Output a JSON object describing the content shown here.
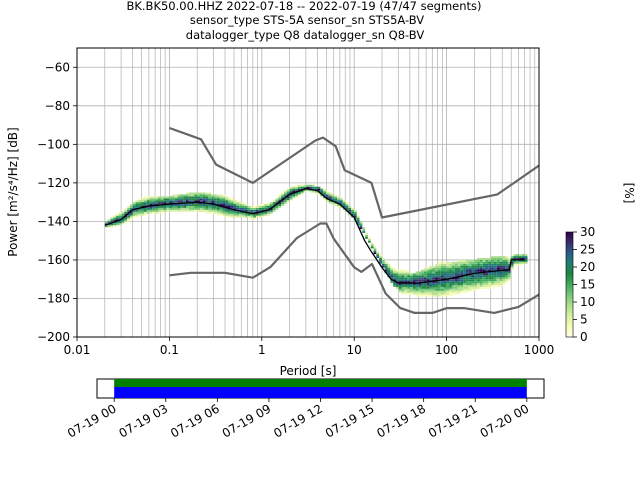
{
  "title_lines": [
    "BK.BK50.00.HHZ   2022-07-18 -- 2022-07-19  (47/47 segments)",
    "sensor_type STS-5A sensor_sn STS5A-BV",
    "datalogger_type Q8 datalogger_sn Q8-BV"
  ],
  "chart_data": [
    {
      "type": "heatmap",
      "xlabel": "Period [s]",
      "ylabel": "Power [m²/s⁴/Hz] [dB]",
      "xscale": "log",
      "xlim": [
        0.01,
        1000
      ],
      "ylim": [
        -200,
        -50
      ],
      "xticks": [
        {
          "v": 0.01,
          "label": "0.01"
        },
        {
          "v": 0.1,
          "label": "0.1"
        },
        {
          "v": 1,
          "label": "1"
        },
        {
          "v": 10,
          "label": "10"
        },
        {
          "v": 100,
          "label": "100"
        },
        {
          "v": 1000,
          "label": "1000"
        }
      ],
      "yticks": [
        {
          "v": -60,
          "label": "−60"
        },
        {
          "v": -80,
          "label": "−80"
        },
        {
          "v": -100,
          "label": "−100"
        },
        {
          "v": -120,
          "label": "−120"
        },
        {
          "v": -140,
          "label": "−140"
        },
        {
          "v": -160,
          "label": "−160"
        },
        {
          "v": -180,
          "label": "−180"
        },
        {
          "v": -200,
          "label": "−200"
        }
      ],
      "grid": true,
      "colorbar": {
        "label": "[%]",
        "range": [
          0,
          30
        ],
        "ticks": [
          "0",
          "5",
          "10",
          "15",
          "20",
          "25",
          "30"
        ],
        "colors": [
          "#ffffe5",
          "#f7fcb9",
          "#d9f0a3",
          "#addd8e",
          "#78c679",
          "#41ab5d",
          "#238443",
          "#1d7f6f",
          "#2c5d8a",
          "#3b2f6b",
          "#2d004b"
        ]
      },
      "series": [
        {
          "role": "new_high_noise_model",
          "color": "#666666",
          "x": [
            0.1,
            0.22,
            0.32,
            0.8,
            3.8,
            4.6,
            6.3,
            7.9,
            15.4,
            20,
            354.8,
            1000
          ],
          "y": [
            -91.5,
            -97.4,
            -110.5,
            -120,
            -98,
            -96.5,
            -101,
            -113.5,
            -120,
            -138,
            -126,
            -111
          ]
        },
        {
          "role": "new_low_noise_model",
          "color": "#666666",
          "x": [
            0.1,
            0.17,
            0.4,
            0.8,
            1.24,
            2.4,
            4.3,
            5,
            6,
            10,
            12,
            15.6,
            21.9,
            31.6,
            45,
            70,
            101,
            154,
            328,
            600,
            1000
          ],
          "y": [
            -168,
            -166.7,
            -166.7,
            -169.2,
            -163.7,
            -148.6,
            -141.1,
            -141.1,
            -149,
            -163.8,
            -166.2,
            -162.1,
            -177.5,
            -185,
            -187.5,
            -187.5,
            -185,
            -185,
            -187.5,
            -184.4,
            -178
          ]
        },
        {
          "role": "mode",
          "color": "#000000",
          "x": [
            0.02,
            0.03,
            0.04,
            0.06,
            0.1,
            0.2,
            0.3,
            0.5,
            0.8,
            1.2,
            2,
            3,
            4,
            5,
            7,
            10,
            13,
            15,
            20,
            25,
            30,
            50,
            100,
            200,
            300,
            480,
            500,
            700
          ],
          "y": [
            -142,
            -139,
            -134,
            -132,
            -131,
            -130,
            -131,
            -134,
            -136,
            -134,
            -126,
            -123,
            -124,
            -128,
            -131,
            -138,
            -150,
            -155,
            -164,
            -170,
            -172,
            -172,
            -170,
            -167,
            -166,
            -165,
            -160,
            -160
          ]
        }
      ],
      "pdf_bands": [
        {
          "x": 0.02,
          "lo": -144,
          "hi": -140
        },
        {
          "x": 0.03,
          "lo": -141,
          "hi": -133
        },
        {
          "x": 0.05,
          "lo": -138,
          "hi": -128
        },
        {
          "x": 0.1,
          "lo": -137,
          "hi": -127
        },
        {
          "x": 0.2,
          "lo": -137,
          "hi": -125
        },
        {
          "x": 0.4,
          "lo": -139,
          "hi": -127
        },
        {
          "x": 0.7,
          "lo": -139,
          "hi": -132
        },
        {
          "x": 1.2,
          "lo": -137,
          "hi": -130
        },
        {
          "x": 2,
          "lo": -130,
          "hi": -122
        },
        {
          "x": 3,
          "lo": -125,
          "hi": -121
        },
        {
          "x": 5,
          "lo": -130,
          "hi": -124
        },
        {
          "x": 8,
          "lo": -134,
          "hi": -128
        },
        {
          "x": 12,
          "lo": -145,
          "hi": -136
        },
        {
          "x": 18,
          "lo": -160,
          "hi": -152
        },
        {
          "x": 25,
          "lo": -172,
          "hi": -160
        },
        {
          "x": 40,
          "lo": -182,
          "hi": -168
        },
        {
          "x": 80,
          "lo": -182,
          "hi": -162
        },
        {
          "x": 200,
          "lo": -180,
          "hi": -160
        },
        {
          "x": 400,
          "lo": -176,
          "hi": -158
        },
        {
          "x": 480,
          "lo": -172,
          "hi": -160
        },
        {
          "x": 500,
          "lo": -165,
          "hi": -158
        },
        {
          "x": 700,
          "lo": -164,
          "hi": -158
        }
      ]
    },
    {
      "type": "timeline",
      "xlabels": [
        "07-19 00",
        "07-19 03",
        "07-19 06",
        "07-19 09",
        "07-19 12",
        "07-19 15",
        "07-19 18",
        "07-19 21",
        "07-20 00"
      ],
      "xrange_hours": [
        -1,
        25
      ],
      "coverage_hours": [
        0,
        24
      ],
      "colors": {
        "segments": "#008000",
        "used": "#0000ff"
      }
    }
  ]
}
